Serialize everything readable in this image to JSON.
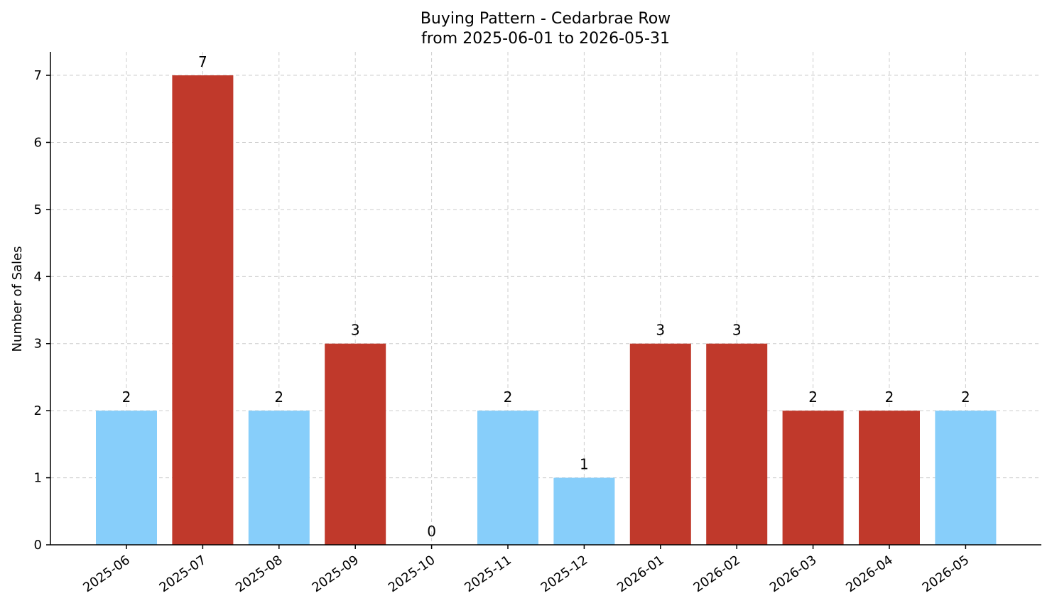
{
  "chart_data": {
    "type": "bar",
    "title": "Buying Pattern - Cedarbrae Row",
    "subtitle": "from 2025-06-01 to 2026-05-31",
    "xlabel": "",
    "ylabel": "Number of Sales",
    "ylim": [
      0,
      7.35
    ],
    "yticks": [
      0,
      1,
      2,
      3,
      4,
      5,
      6,
      7
    ],
    "grid": true,
    "categories": [
      "2025-06",
      "2025-07",
      "2025-08",
      "2025-09",
      "2025-10",
      "2025-11",
      "2025-12",
      "2026-01",
      "2026-02",
      "2026-03",
      "2026-04",
      "2026-05"
    ],
    "values": [
      2,
      7,
      2,
      3,
      0,
      2,
      1,
      3,
      3,
      2,
      2,
      2
    ],
    "bar_colors": [
      "#87cefa",
      "#c0392b",
      "#87cefa",
      "#c0392b",
      "#87cefa",
      "#87cefa",
      "#87cefa",
      "#c0392b",
      "#c0392b",
      "#c0392b",
      "#c0392b",
      "#87cefa"
    ]
  }
}
